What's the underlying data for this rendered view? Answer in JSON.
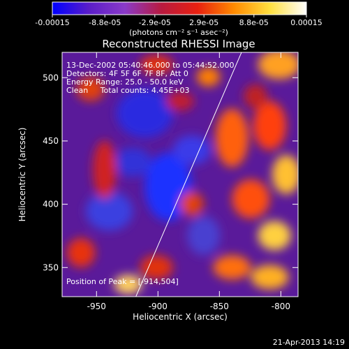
{
  "colorbar": {
    "ticks": [
      "-0.00015",
      "-8.8e-05",
      "-2.9e-05",
      "2.9e-05",
      "8.8e-05",
      "0.00015"
    ],
    "tick_values": [
      -0.00015,
      -8.8e-05,
      -2.9e-05,
      2.9e-05,
      8.8e-05,
      0.00015
    ],
    "range": [
      -0.00015,
      0.00015
    ],
    "units_label": "(photons cm⁻² s⁻¹ asec⁻²)",
    "colors": [
      "#0000ff",
      "#5a1dc8",
      "#8a3ac8",
      "#b81a40",
      "#e82010",
      "#ff8a00",
      "#ffe040",
      "#ffffff"
    ]
  },
  "chart_data": {
    "type": "heatmap",
    "title": "Reconstructed RHESSI Image",
    "xlabel": "Heliocentric X (arcsec)",
    "ylabel": "Heliocentric Y (arcsec)",
    "xlim": [
      -978,
      -786
    ],
    "ylim": [
      327,
      520
    ],
    "xticks": [
      -950,
      -900,
      -850,
      -800
    ],
    "yticks": [
      350,
      400,
      450,
      500
    ],
    "xtick_labels": [
      "-950",
      "-900",
      "-850",
      "-800"
    ],
    "ytick_labels": [
      "350",
      "400",
      "450",
      "500"
    ],
    "limb_line": [
      [
        -918,
        327
      ],
      [
        -832,
        520
      ]
    ],
    "peak_position": [
      -914,
      504
    ],
    "grid": false
  },
  "annotations": {
    "line1": "13-Dec-2002 05:40:46.000 to 05:44:52.000",
    "line2": "Detectors: 4F 5F 6F 7F 8F, Att 0",
    "line3": "Energy Range: 25.0 - 50.0 keV",
    "line4": "Clean     Total counts: 4.45E+03",
    "peak": "Position of Peak = [-914,504]"
  },
  "footer": {
    "timestamp": "21-Apr-2013 14:19"
  }
}
